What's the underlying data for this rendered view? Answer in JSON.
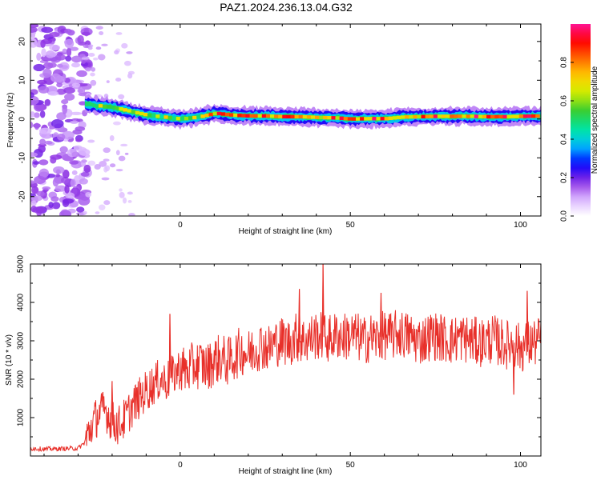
{
  "figure": {
    "title": "PAZ1.2024.236.13.04.G32"
  },
  "chart_data": [
    {
      "type": "heatmap",
      "title": "PAZ1.2024.236.13.04.G32",
      "xlabel": "Height of straight line (km)",
      "ylabel": "Frequency (Hz)",
      "xlim": [
        -44,
        106
      ],
      "ylim": [
        -25,
        24.5
      ],
      "xticks": [
        0,
        50,
        100
      ],
      "yticks": [
        20,
        10,
        0,
        -10,
        -20
      ],
      "colorbar": {
        "label": "Normalized spectral amplitude",
        "range": [
          0,
          1
        ],
        "ticks": [
          0.0,
          0.2,
          0.4,
          0.6,
          0.8
        ],
        "colors": [
          "#ffffff",
          "#d9b3ff",
          "#8a2be2",
          "#0000ff",
          "#00bfff",
          "#00e5a0",
          "#33cc33",
          "#ccee00",
          "#ffd000",
          "#ff6a00",
          "#ff0000",
          "#ff1493"
        ]
      },
      "ridge": {
        "description_free": true,
        "x": [
          -28,
          -25,
          -20,
          -15,
          -10,
          -5,
          0,
          5,
          10,
          15,
          20,
          25,
          30,
          35,
          40,
          45,
          50,
          55,
          60,
          65,
          70,
          75,
          80,
          85,
          90,
          95,
          100,
          106
        ],
        "frequency": [
          4.0,
          3.5,
          3.0,
          2.0,
          1.0,
          0.5,
          0.0,
          0.5,
          1.5,
          1.0,
          0.8,
          0.8,
          0.6,
          0.6,
          0.4,
          0.3,
          0.0,
          0.1,
          0.1,
          0.5,
          0.6,
          0.7,
          0.7,
          0.7,
          0.6,
          0.6,
          0.7,
          0.8
        ]
      }
    },
    {
      "type": "line",
      "xlabel": "Height of straight line (km)",
      "ylabel": "SNR (10 * v/v)",
      "xlim": [
        -44,
        106
      ],
      "ylim": [
        0,
        5000
      ],
      "xticks": [
        0,
        50,
        100
      ],
      "yticks": [
        1000,
        2000,
        3000,
        4000,
        5000
      ],
      "color": "#e8302a",
      "x": [
        -44,
        -40,
        -35,
        -30,
        -28,
        -26,
        -24,
        -22,
        -20,
        -18,
        -16,
        -14,
        -12,
        -10,
        -8,
        -6,
        -4,
        -2,
        0,
        2,
        4,
        6,
        8,
        10,
        12,
        14,
        16,
        18,
        20,
        22,
        24,
        26,
        28,
        30,
        32,
        34,
        36,
        38,
        40,
        42,
        44,
        46,
        48,
        50,
        52,
        54,
        56,
        58,
        60,
        62,
        64,
        66,
        68,
        70,
        72,
        74,
        76,
        78,
        80,
        82,
        84,
        86,
        88,
        90,
        92,
        94,
        96,
        98,
        100,
        102,
        104,
        106
      ],
      "y": [
        200,
        180,
        190,
        200,
        350,
        800,
        1100,
        1200,
        900,
        800,
        1000,
        1300,
        1500,
        1700,
        1850,
        2000,
        1950,
        2100,
        2300,
        2200,
        2350,
        2400,
        2300,
        2500,
        2550,
        2450,
        2600,
        2750,
        2650,
        2800,
        2900,
        2800,
        2950,
        3000,
        2950,
        3100,
        3000,
        3050,
        3150,
        3100,
        3050,
        3150,
        3100,
        3150,
        3100,
        3000,
        3100,
        3050,
        3150,
        3100,
        3200,
        3150,
        3100,
        3000,
        3050,
        3150,
        3100,
        3050,
        3000,
        3100,
        3050,
        3000,
        2950,
        3000,
        3050,
        2950,
        2900,
        2950,
        2800,
        2900,
        2950,
        3000
      ],
      "peaks": [
        {
          "x": -20,
          "y": 1950
        },
        {
          "x": -3,
          "y": 3700
        },
        {
          "x": 35,
          "y": 4350
        },
        {
          "x": 42,
          "y": 5000
        },
        {
          "x": 59,
          "y": 4250
        },
        {
          "x": 102,
          "y": 4300
        },
        {
          "x": 98,
          "y": 1600
        },
        {
          "x": 106,
          "y": 3500
        }
      ]
    }
  ]
}
